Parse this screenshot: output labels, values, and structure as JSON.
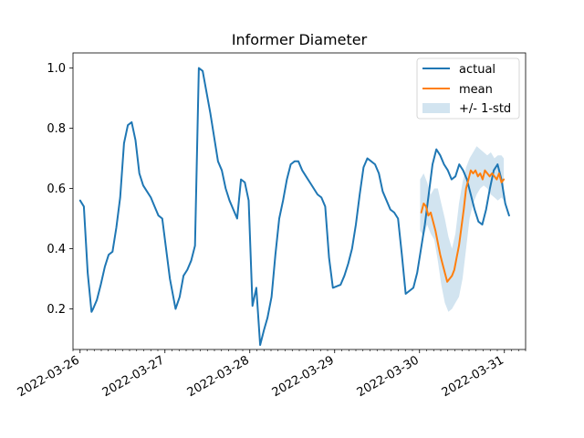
{
  "chart_data": {
    "type": "line",
    "title": "Informer Diameter",
    "xlabel": "",
    "ylabel": "",
    "x_range": [
      "2022-03-25T22:00",
      "2022-03-31T06:00"
    ],
    "ylim": [
      0.065,
      1.05
    ],
    "yticks": [
      0.2,
      0.4,
      0.6,
      0.8,
      1.0
    ],
    "ytick_labels": [
      "0.2",
      "0.4",
      "0.6",
      "0.8",
      "1.0"
    ],
    "xtick_dates": [
      "2022-03-26",
      "2022-03-27",
      "2022-03-28",
      "2022-03-29",
      "2022-03-30",
      "2022-03-31"
    ],
    "xtick_labels": [
      "2022-03-26",
      "2022-03-27",
      "2022-03-28",
      "2022-03-29",
      "2022-03-30",
      "2022-03-31"
    ],
    "grid": false,
    "legend_position": "top-right",
    "legend": [
      "actual",
      "mean",
      "+/- 1-std"
    ],
    "colors": {
      "actual": "#1f77b4",
      "mean": "#ff7f0e",
      "band": "#1f77b4"
    },
    "series": [
      {
        "name": "actual",
        "x": [
          "2022-03-26T00:00",
          "2022-03-26T01:05",
          "2022-03-26T02:10",
          "2022-03-26T03:15",
          "2022-03-26T03:40",
          "2022-03-26T04:45",
          "2022-03-26T05:50",
          "2022-03-26T07:00",
          "2022-03-26T08:05",
          "2022-03-26T09:10",
          "2022-03-26T10:15",
          "2022-03-26T11:20",
          "2022-03-26T12:25",
          "2022-03-26T13:30",
          "2022-03-26T14:35",
          "2022-03-26T15:40",
          "2022-03-26T16:45",
          "2022-03-26T17:50",
          "2022-03-26T18:55",
          "2022-03-26T20:00",
          "2022-03-26T21:05",
          "2022-03-26T22:10",
          "2022-03-26T23:15",
          "2022-03-27T01:25",
          "2022-03-27T03:00",
          "2022-03-27T04:10",
          "2022-03-27T05:15",
          "2022-03-27T06:20",
          "2022-03-27T07:25",
          "2022-03-27T08:30",
          "2022-03-27T09:35",
          "2022-03-27T10:40",
          "2022-03-27T11:45",
          "2022-03-27T12:50",
          "2022-03-27T13:55",
          "2022-03-27T15:00",
          "2022-03-27T16:05",
          "2022-03-27T17:10",
          "2022-03-27T18:15",
          "2022-03-27T19:20",
          "2022-03-27T20:25",
          "2022-03-27T21:30",
          "2022-03-27T22:35",
          "2022-03-27T23:40",
          "2022-03-28T00:45",
          "2022-03-28T01:50",
          "2022-03-28T02:55",
          "2022-03-28T04:00",
          "2022-03-28T05:00",
          "2022-03-28T06:10",
          "2022-03-28T07:15",
          "2022-03-28T08:20",
          "2022-03-28T09:25",
          "2022-03-28T10:30",
          "2022-03-28T11:35",
          "2022-03-28T12:40",
          "2022-03-28T13:45",
          "2022-03-28T14:50",
          "2022-03-28T15:55",
          "2022-03-28T17:00",
          "2022-03-28T18:05",
          "2022-03-28T19:10",
          "2022-03-28T20:15",
          "2022-03-28T21:20",
          "2022-03-28T22:25",
          "2022-03-28T23:30",
          "2022-03-29T01:40",
          "2022-03-29T02:45",
          "2022-03-29T03:50",
          "2022-03-29T04:55",
          "2022-03-29T06:00",
          "2022-03-29T07:05",
          "2022-03-29T08:10",
          "2022-03-29T09:15",
          "2022-03-29T10:20",
          "2022-03-29T11:25",
          "2022-03-29T12:30",
          "2022-03-29T13:35",
          "2022-03-29T14:40",
          "2022-03-29T15:45",
          "2022-03-29T16:50",
          "2022-03-29T17:55",
          "2022-03-29T19:00",
          "2022-03-29T20:05",
          "2022-03-29T22:15",
          "2022-03-29T23:20",
          "2022-03-30T00:25",
          "2022-03-30T01:30",
          "2022-03-30T02:35",
          "2022-03-30T03:40",
          "2022-03-30T04:45",
          "2022-03-30T05:50",
          "2022-03-30T06:55",
          "2022-03-30T08:00",
          "2022-03-30T09:05",
          "2022-03-30T10:10",
          "2022-03-30T11:15",
          "2022-03-30T12:20",
          "2022-03-30T13:25",
          "2022-03-30T14:30",
          "2022-03-30T15:35",
          "2022-03-30T16:40",
          "2022-03-30T17:45",
          "2022-03-30T18:50",
          "2022-03-30T19:55",
          "2022-03-30T21:00",
          "2022-03-30T22:05",
          "2022-03-30T23:10",
          "2022-03-31T00:15",
          "2022-03-31T01:20"
        ],
        "values": [
          0.56,
          0.54,
          0.32,
          0.19,
          0.2,
          0.23,
          0.28,
          0.34,
          0.38,
          0.39,
          0.47,
          0.57,
          0.75,
          0.81,
          0.82,
          0.76,
          0.65,
          0.61,
          0.59,
          0.57,
          0.54,
          0.51,
          0.5,
          0.3,
          0.2,
          0.24,
          0.31,
          0.33,
          0.36,
          0.41,
          1.0,
          0.99,
          0.92,
          0.85,
          0.77,
          0.69,
          0.66,
          0.6,
          0.56,
          0.53,
          0.5,
          0.63,
          0.62,
          0.56,
          0.21,
          0.27,
          0.08,
          0.13,
          0.17,
          0.24,
          0.38,
          0.5,
          0.56,
          0.63,
          0.68,
          0.69,
          0.69,
          0.66,
          0.64,
          0.62,
          0.6,
          0.58,
          0.57,
          0.54,
          0.37,
          0.27,
          0.28,
          0.31,
          0.35,
          0.4,
          0.48,
          0.58,
          0.67,
          0.7,
          0.69,
          0.68,
          0.65,
          0.59,
          0.56,
          0.53,
          0.52,
          0.5,
          0.38,
          0.25,
          0.27,
          0.32,
          0.4,
          0.48,
          0.58,
          0.68,
          0.73,
          0.71,
          0.68,
          0.66,
          0.63,
          0.64,
          0.68,
          0.66,
          0.63,
          0.58,
          0.53,
          0.49,
          0.48,
          0.53,
          0.6,
          0.66,
          0.68,
          0.63,
          0.55,
          0.51
        ]
      },
      {
        "name": "mean",
        "x": [
          "2022-03-30T00:30",
          "2022-03-30T01:10",
          "2022-03-30T01:50",
          "2022-03-30T02:30",
          "2022-03-30T03:10",
          "2022-03-30T03:50",
          "2022-03-30T04:30",
          "2022-03-30T05:10",
          "2022-03-30T05:50",
          "2022-03-30T06:30",
          "2022-03-30T07:10",
          "2022-03-30T07:50",
          "2022-03-30T08:30",
          "2022-03-30T09:10",
          "2022-03-30T09:50",
          "2022-03-30T10:30",
          "2022-03-30T11:10",
          "2022-03-30T11:50",
          "2022-03-30T12:30",
          "2022-03-30T13:10",
          "2022-03-30T13:50",
          "2022-03-30T14:30",
          "2022-03-30T15:10",
          "2022-03-30T15:50",
          "2022-03-30T16:30",
          "2022-03-30T17:10",
          "2022-03-30T17:50",
          "2022-03-30T18:30",
          "2022-03-30T19:10",
          "2022-03-30T19:50",
          "2022-03-30T20:30",
          "2022-03-30T21:10",
          "2022-03-30T21:50",
          "2022-03-30T22:30",
          "2022-03-30T23:10",
          "2022-03-30T23:50"
        ],
        "values": [
          0.52,
          0.55,
          0.54,
          0.51,
          0.52,
          0.49,
          0.46,
          0.42,
          0.38,
          0.35,
          0.32,
          0.29,
          0.3,
          0.31,
          0.33,
          0.37,
          0.41,
          0.47,
          0.53,
          0.6,
          0.63,
          0.66,
          0.65,
          0.66,
          0.64,
          0.65,
          0.63,
          0.66,
          0.65,
          0.64,
          0.65,
          0.64,
          0.63,
          0.65,
          0.62,
          0.63
        ]
      }
    ],
    "band": {
      "name": "+/- 1-std",
      "x": [
        "2022-03-30T00:10",
        "2022-03-30T01:10",
        "2022-03-30T02:10",
        "2022-03-30T03:10",
        "2022-03-30T04:10",
        "2022-03-30T05:10",
        "2022-03-30T06:10",
        "2022-03-30T07:10",
        "2022-03-30T08:10",
        "2022-03-30T09:10",
        "2022-03-30T10:10",
        "2022-03-30T11:10",
        "2022-03-30T12:10",
        "2022-03-30T13:10",
        "2022-03-30T14:10",
        "2022-03-30T15:10",
        "2022-03-30T16:10",
        "2022-03-30T17:10",
        "2022-03-30T18:10",
        "2022-03-30T19:10",
        "2022-03-30T20:10",
        "2022-03-30T21:10",
        "2022-03-30T22:10",
        "2022-03-30T23:10",
        "2022-03-30T23:50"
      ],
      "upper": [
        0.63,
        0.65,
        0.62,
        0.58,
        0.6,
        0.6,
        0.55,
        0.5,
        0.44,
        0.4,
        0.45,
        0.55,
        0.62,
        0.67,
        0.7,
        0.72,
        0.74,
        0.73,
        0.72,
        0.71,
        0.72,
        0.7,
        0.71,
        0.71,
        0.7
      ],
      "lower": [
        0.46,
        0.44,
        0.48,
        0.45,
        0.43,
        0.36,
        0.28,
        0.22,
        0.19,
        0.2,
        0.22,
        0.24,
        0.3,
        0.4,
        0.5,
        0.55,
        0.58,
        0.6,
        0.61,
        0.6,
        0.58,
        0.57,
        0.56,
        0.57,
        0.56
      ]
    }
  }
}
